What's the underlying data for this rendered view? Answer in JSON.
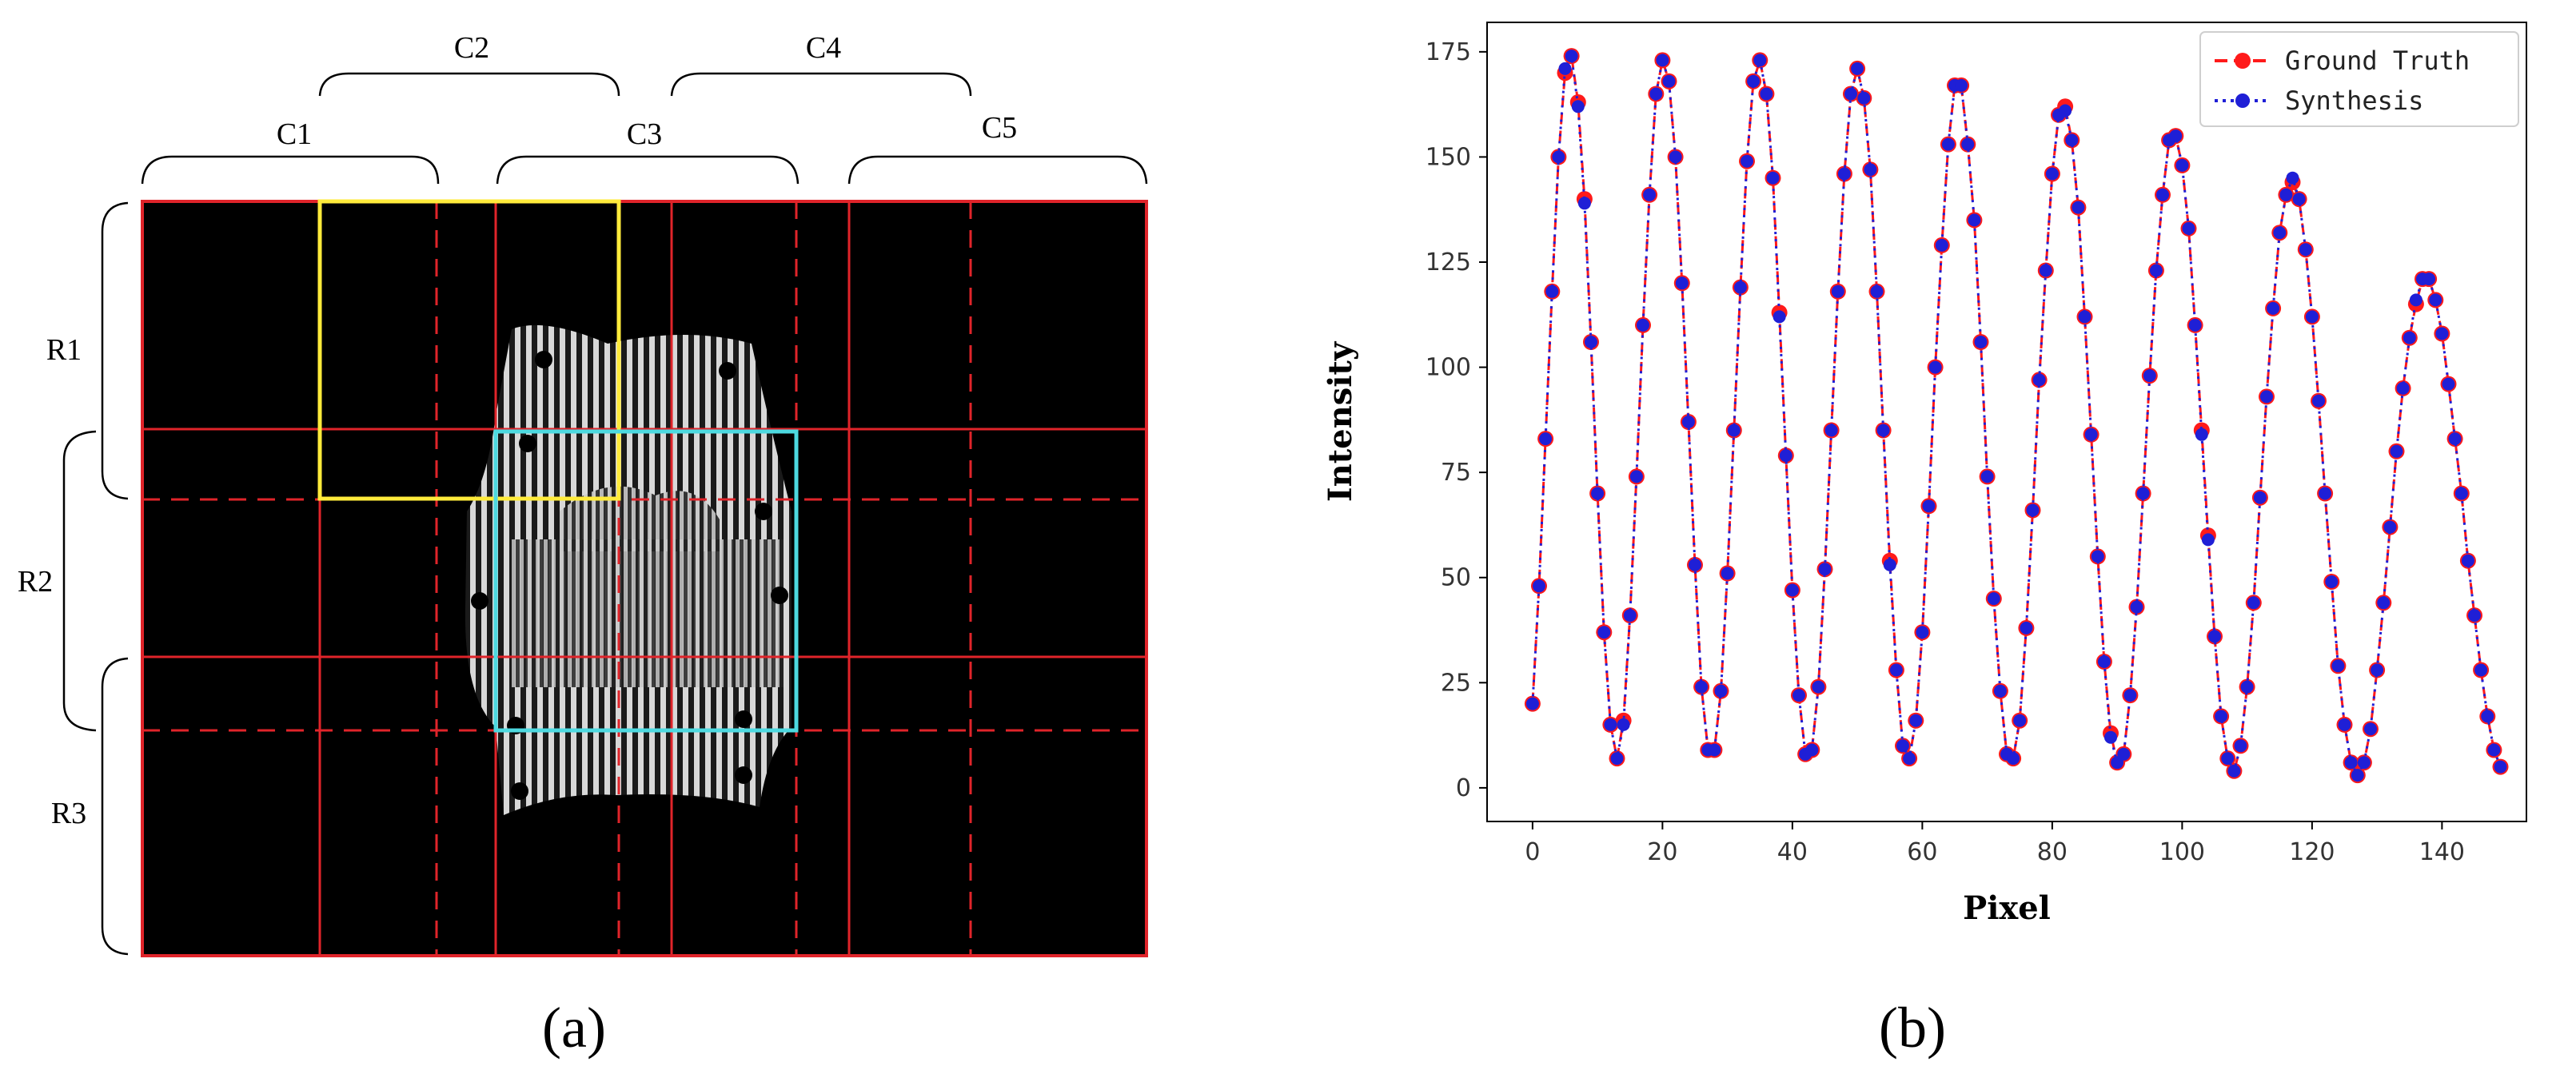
{
  "figure": {
    "panel_a_caption": "(a)",
    "panel_b_caption": "(b)"
  },
  "panel_a": {
    "column_labels": [
      "C1",
      "C2",
      "C3",
      "C4",
      "C5"
    ],
    "row_labels": [
      "R1",
      "R2",
      "R3"
    ],
    "colors": {
      "background": "#000000",
      "grid_solid": "#e0242a",
      "grid_dashed": "#e0242a",
      "highlight_1": "#ffeb3b",
      "highlight_2": "#4dd9e0",
      "object_stripes": "#bfbfbf"
    }
  },
  "chart_data": {
    "type": "line",
    "title": "",
    "xlabel": "Pixel",
    "ylabel": "Intensity",
    "xlim": [
      -7,
      153
    ],
    "ylim": [
      -8,
      182
    ],
    "xticks": [
      0,
      20,
      40,
      60,
      80,
      100,
      120,
      140
    ],
    "yticks": [
      0,
      25,
      50,
      75,
      100,
      125,
      150,
      175
    ],
    "grid": false,
    "legend_position": "top-right",
    "series": [
      {
        "name": "Ground Truth",
        "color": "#ff1a1a",
        "line_style": "dashed",
        "marker": "circle",
        "x": [
          0,
          1,
          2,
          3,
          4,
          5,
          6,
          7,
          8,
          9,
          10,
          11,
          12,
          13,
          14,
          15,
          16,
          17,
          18,
          19,
          20,
          21,
          22,
          23,
          24,
          25,
          26,
          27,
          28,
          29,
          30,
          31,
          32,
          33,
          34,
          35,
          36,
          37,
          38,
          39,
          40,
          41,
          42,
          43,
          44,
          45,
          46,
          47,
          48,
          49,
          50,
          51,
          52,
          53,
          54,
          55,
          56,
          57,
          58,
          59,
          60,
          61,
          62,
          63,
          64,
          65,
          66,
          67,
          68,
          69,
          70,
          71,
          72,
          73,
          74,
          75,
          76,
          77,
          78,
          79,
          80,
          81,
          82,
          83,
          84,
          85,
          86,
          87,
          88,
          89,
          90,
          91,
          92,
          93,
          94,
          95,
          96,
          97,
          98,
          99,
          100,
          101,
          102,
          103,
          104,
          105,
          106,
          107,
          108,
          109,
          110,
          111,
          112,
          113,
          114,
          115,
          116,
          117,
          118,
          119,
          120,
          121,
          122,
          123,
          124,
          125,
          126,
          127,
          128,
          129,
          130,
          131,
          132,
          133,
          134,
          135,
          136,
          137,
          138,
          139,
          140,
          141,
          142,
          143,
          144,
          145,
          146,
          147,
          148,
          149
        ],
        "y": [
          20,
          48,
          83,
          118,
          150,
          170,
          174,
          163,
          140,
          106,
          70,
          37,
          15,
          7,
          16,
          41,
          74,
          110,
          141,
          165,
          173,
          168,
          150,
          120,
          87,
          53,
          24,
          9,
          9,
          23,
          51,
          85,
          119,
          149,
          168,
          173,
          165,
          145,
          113,
          79,
          47,
          22,
          8,
          9,
          24,
          52,
          85,
          118,
          146,
          165,
          171,
          164,
          147,
          118,
          85,
          54,
          28,
          10,
          7,
          16,
          37,
          67,
          100,
          129,
          153,
          167,
          167,
          153,
          135,
          106,
          74,
          45,
          23,
          8,
          7,
          16,
          38,
          66,
          97,
          123,
          146,
          160,
          162,
          154,
          138,
          112,
          84,
          55,
          30,
          13,
          6,
          8,
          22,
          43,
          70,
          98,
          123,
          141,
          154,
          155,
          148,
          133,
          110,
          85,
          60,
          36,
          17,
          7,
          4,
          10,
          24,
          44,
          69,
          93,
          114,
          132,
          141,
          144,
          140,
          128,
          112,
          92,
          70,
          49,
          29,
          15,
          6,
          3,
          6,
          14,
          28,
          44,
          62,
          80,
          95,
          107,
          115,
          121,
          121,
          116,
          108,
          96,
          83,
          70,
          54,
          41,
          28,
          17,
          9,
          5
        ]
      },
      {
        "name": "Synthesis",
        "color": "#1f1fd6",
        "line_style": "dotted",
        "marker": "circle",
        "x": [
          0,
          1,
          2,
          3,
          4,
          5,
          6,
          7,
          8,
          9,
          10,
          11,
          12,
          13,
          14,
          15,
          16,
          17,
          18,
          19,
          20,
          21,
          22,
          23,
          24,
          25,
          26,
          27,
          28,
          29,
          30,
          31,
          32,
          33,
          34,
          35,
          36,
          37,
          38,
          39,
          40,
          41,
          42,
          43,
          44,
          45,
          46,
          47,
          48,
          49,
          50,
          51,
          52,
          53,
          54,
          55,
          56,
          57,
          58,
          59,
          60,
          61,
          62,
          63,
          64,
          65,
          66,
          67,
          68,
          69,
          70,
          71,
          72,
          73,
          74,
          75,
          76,
          77,
          78,
          79,
          80,
          81,
          82,
          83,
          84,
          85,
          86,
          87,
          88,
          89,
          90,
          91,
          92,
          93,
          94,
          95,
          96,
          97,
          98,
          99,
          100,
          101,
          102,
          103,
          104,
          105,
          106,
          107,
          108,
          109,
          110,
          111,
          112,
          113,
          114,
          115,
          116,
          117,
          118,
          119,
          120,
          121,
          122,
          123,
          124,
          125,
          126,
          127,
          128,
          129,
          130,
          131,
          132,
          133,
          134,
          135,
          136,
          137,
          138,
          139,
          140,
          141,
          142,
          143,
          144,
          145,
          146,
          147,
          148,
          149
        ],
        "y": [
          20,
          48,
          83,
          118,
          150,
          171,
          174,
          162,
          139,
          106,
          70,
          37,
          15,
          7,
          15,
          41,
          74,
          110,
          141,
          165,
          173,
          168,
          150,
          120,
          87,
          53,
          24,
          9,
          9,
          23,
          51,
          85,
          119,
          149,
          168,
          173,
          165,
          145,
          112,
          79,
          47,
          22,
          8,
          9,
          24,
          52,
          85,
          118,
          146,
          165,
          171,
          164,
          147,
          118,
          85,
          53,
          28,
          10,
          7,
          16,
          37,
          67,
          100,
          129,
          153,
          167,
          167,
          153,
          135,
          106,
          74,
          45,
          23,
          8,
          7,
          16,
          38,
          66,
          97,
          123,
          146,
          160,
          161,
          154,
          138,
          112,
          84,
          55,
          30,
          12,
          6,
          8,
          22,
          43,
          70,
          98,
          123,
          141,
          154,
          155,
          148,
          133,
          110,
          84,
          59,
          36,
          17,
          7,
          4,
          10,
          24,
          44,
          69,
          93,
          114,
          132,
          141,
          145,
          140,
          128,
          112,
          92,
          70,
          49,
          29,
          15,
          6,
          3,
          6,
          14,
          28,
          44,
          62,
          80,
          95,
          107,
          116,
          121,
          121,
          116,
          108,
          96,
          83,
          70,
          54,
          41,
          28,
          17,
          9,
          5
        ]
      }
    ]
  }
}
